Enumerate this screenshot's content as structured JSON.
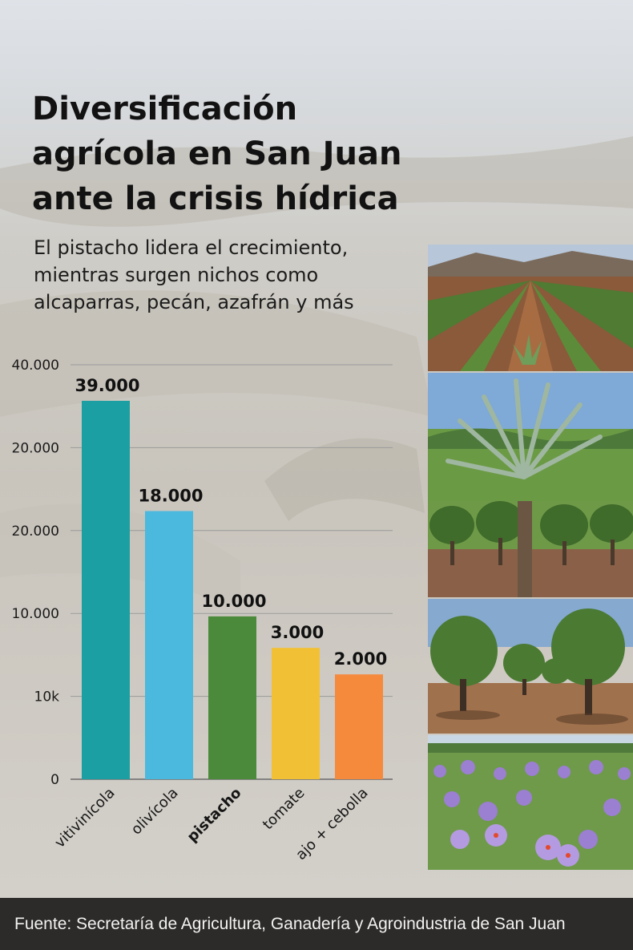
{
  "header": {
    "title": "Diversificación agrícola en San Juan ante la crisis hídrica",
    "subtitle": "El pistacho lidera el crecimiento, mientras surgen nichos como alcaparras, pecán, azafrán y más"
  },
  "chart_data": {
    "type": "bar",
    "categories": [
      "vitivinícola",
      "olivícola",
      "pistacho",
      "tomate",
      "ajo + cebolla"
    ],
    "values": [
      39000,
      18000,
      10000,
      3000,
      2000
    ],
    "value_labels": [
      "39.000",
      "18.000",
      "10.000",
      "3.000",
      "2.000"
    ],
    "y_tick_labels": [
      "0",
      "10k",
      "10.000",
      "20.000",
      "20.000",
      "40.000"
    ],
    "bar_heights_fraction": [
      0.913,
      0.647,
      0.393,
      0.317,
      0.253
    ],
    "colors": [
      "#1c9fa2",
      "#4bb8de",
      "#4c8a3b",
      "#f2c034",
      "#f58a3c"
    ],
    "emphasized_category": "pistacho",
    "grid": true,
    "title": "",
    "xlabel": "",
    "ylabel": ""
  },
  "photos": {
    "items": [
      "agave-field",
      "agave-plant",
      "pistachio-orchard",
      "saffron-flowers"
    ]
  },
  "footer": {
    "source": "Fuente: Secretaría de Agricultura, Ganadería y Agroindustria de San Juan"
  }
}
